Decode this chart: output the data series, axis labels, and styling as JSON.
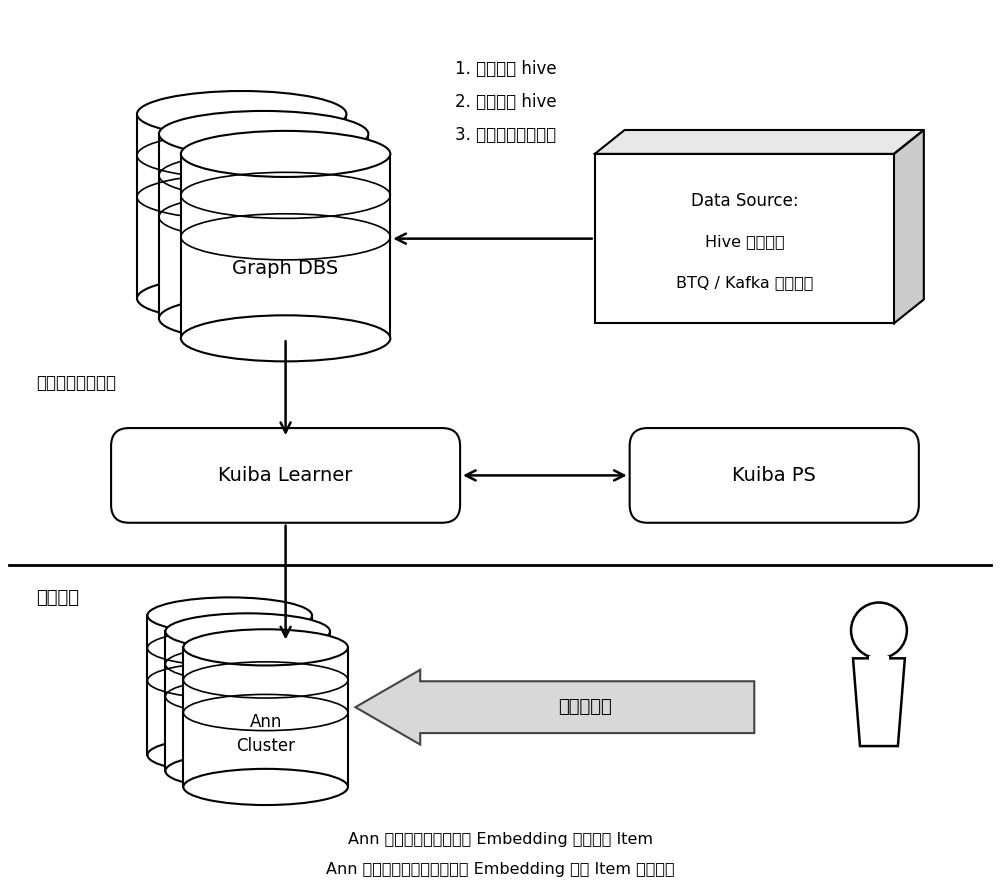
{
  "bg_color": "#ffffff",
  "graph_dbs_label": "Graph DBS",
  "ann_cluster_label": "Ann\nCluster",
  "kuiba_learner_label": "Kuiba Learner",
  "kuiba_ps_label": "Kuiba PS",
  "data_source_line1": "Data Source:",
  "data_source_line2": "Hive 离线数据",
  "data_source_line3": "BTQ / Kafka 在线数据",
  "top_text_line1": "1. 静态加载 hive",
  "top_text_line2": "2. 增量加载 hive",
  "top_text_line3": "3. 监听在线数据集合",
  "label_train": "图内生成训练样本",
  "label_online_call": "在线调用侧",
  "label_online_part": "线上部分",
  "bottom_text1": "Ann 召回：模型召回阶段 Embedding 召回相似 Item",
  "bottom_text2": "Ann 检索：排序阶段可以利用 Embedding 计算 Item 相似度等"
}
